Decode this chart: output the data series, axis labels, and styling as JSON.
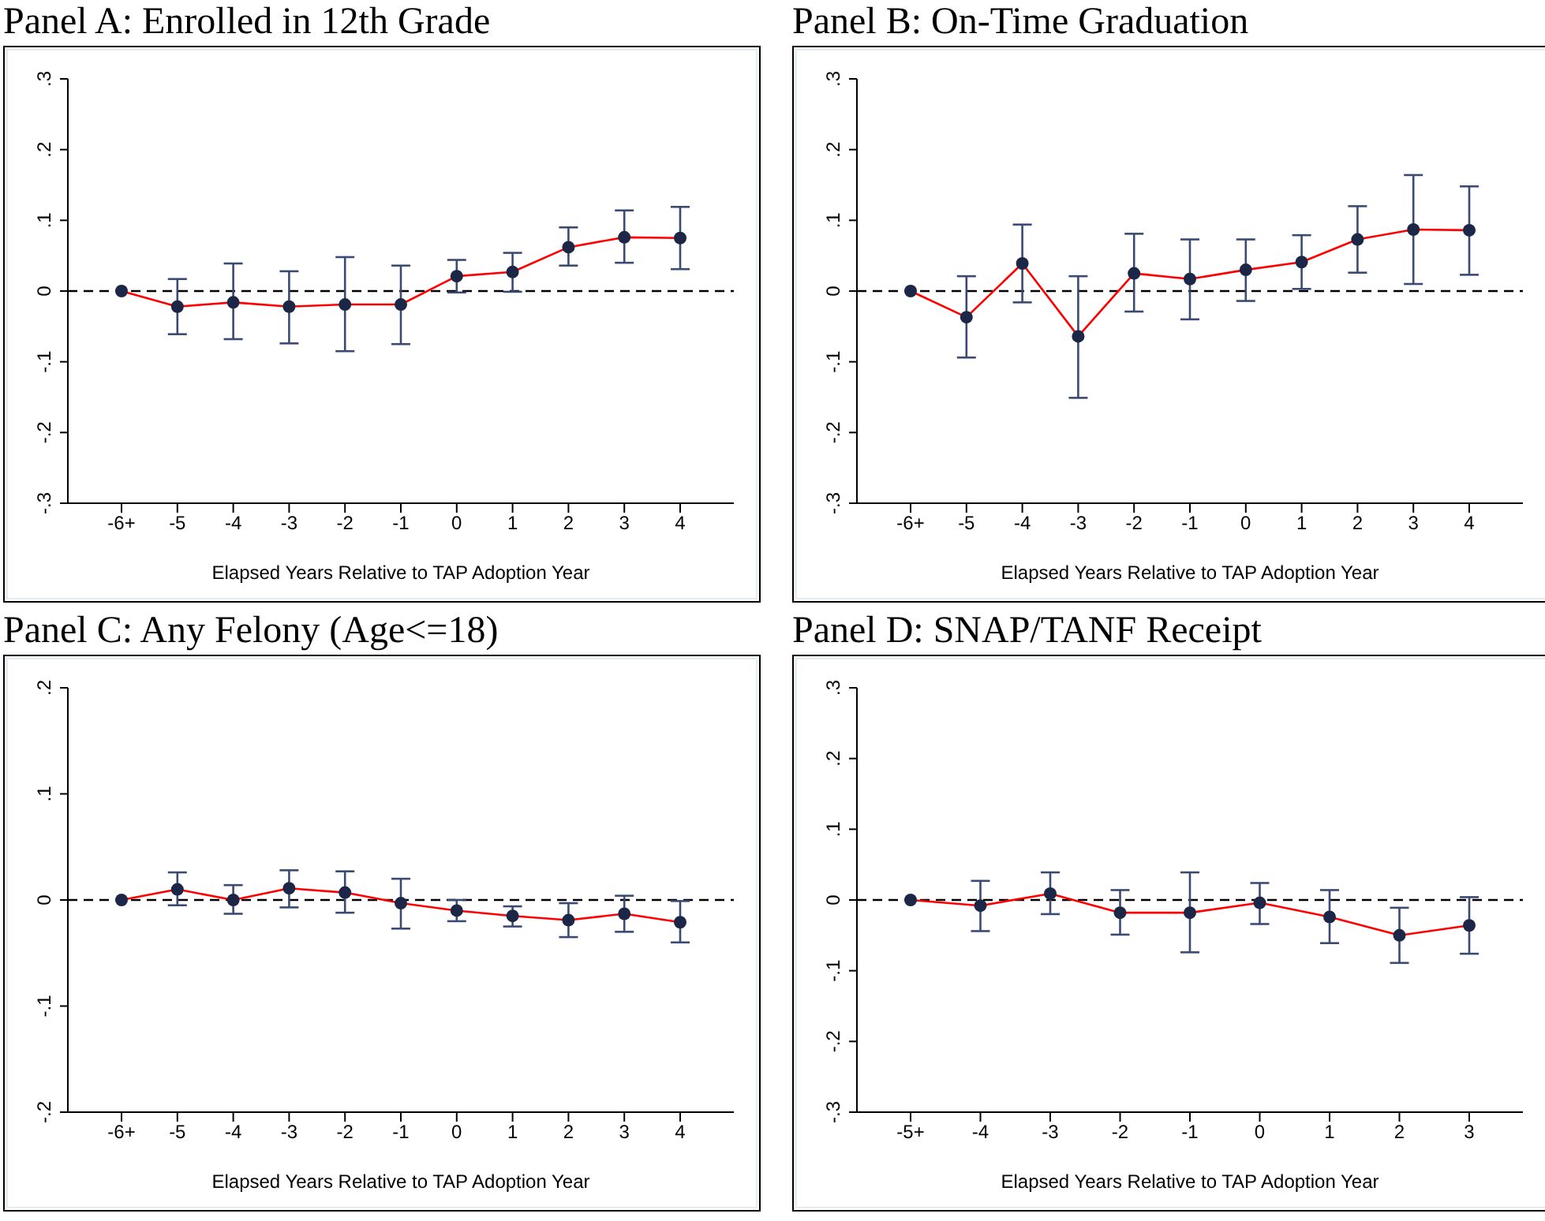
{
  "chart_data": [
    {
      "type": "line",
      "title": "Panel A: Enrolled in 12th Grade",
      "xlabel": "Elapsed Years Relative to TAP Adoption Year",
      "categories": [
        "-6+",
        "-5",
        "-4",
        "-3",
        "-2",
        "-1",
        "0",
        "1",
        "2",
        "3",
        "4"
      ],
      "series": [
        {
          "color": "#ff0000",
          "values": [
            0,
            -0.022,
            -0.016,
            -0.022,
            -0.019,
            -0.019,
            0.021,
            0.027,
            0.062,
            0.076,
            0.075
          ],
          "errors": [
            null,
            [
              -0.061,
              0.017
            ],
            [
              -0.068,
              0.039
            ],
            [
              -0.074,
              0.028
            ],
            [
              -0.085,
              0.048
            ],
            [
              -0.075,
              0.036
            ],
            [
              -0.002,
              0.044
            ],
            [
              -0.001,
              0.054
            ],
            [
              0.036,
              0.09
            ],
            [
              0.04,
              0.114
            ],
            [
              0.031,
              0.119
            ]
          ]
        }
      ],
      "ylim": [
        -0.3,
        0.3
      ],
      "yticks": [
        {
          "value": -0.3,
          "label": "-.3"
        },
        {
          "value": -0.2,
          "label": "-.2"
        },
        {
          "value": -0.1,
          "label": "-.1"
        },
        {
          "value": 0,
          "label": "0"
        },
        {
          "value": 0.1,
          "label": ".1"
        },
        {
          "value": 0.2,
          "label": ".2"
        },
        {
          "value": 0.3,
          "label": ".3"
        }
      ],
      "ref_lines": [
        {
          "axis": "y",
          "value": 0,
          "color": "#000000",
          "line_style": "dashed"
        }
      ],
      "marker": "circle",
      "line_style": "solid",
      "grid": false,
      "legend": false
    },
    {
      "type": "line",
      "title": "Panel B: On-Time Graduation",
      "xlabel": "Elapsed Years Relative to TAP Adoption Year",
      "categories": [
        "-6+",
        "-5",
        "-4",
        "-3",
        "-2",
        "-1",
        "0",
        "1",
        "2",
        "3",
        "4"
      ],
      "series": [
        {
          "color": "#ff0000",
          "values": [
            0,
            -0.037,
            0.039,
            -0.064,
            0.025,
            0.017,
            0.03,
            0.041,
            0.073,
            0.087,
            0.086
          ],
          "errors": [
            null,
            [
              -0.094,
              0.021
            ],
            [
              -0.016,
              0.094
            ],
            [
              -0.151,
              0.021
            ],
            [
              -0.029,
              0.081
            ],
            [
              -0.04,
              0.073
            ],
            [
              -0.014,
              0.073
            ],
            [
              0.003,
              0.079
            ],
            [
              0.026,
              0.12
            ],
            [
              0.01,
              0.164
            ],
            [
              0.023,
              0.148
            ]
          ]
        }
      ],
      "ylim": [
        -0.3,
        0.3
      ],
      "yticks": [
        {
          "value": -0.3,
          "label": "-.3"
        },
        {
          "value": -0.2,
          "label": "-.2"
        },
        {
          "value": -0.1,
          "label": "-.1"
        },
        {
          "value": 0,
          "label": "0"
        },
        {
          "value": 0.1,
          "label": ".1"
        },
        {
          "value": 0.2,
          "label": ".2"
        },
        {
          "value": 0.3,
          "label": ".3"
        }
      ],
      "ref_lines": [
        {
          "axis": "y",
          "value": 0,
          "color": "#000000",
          "line_style": "dashed"
        }
      ],
      "marker": "circle",
      "line_style": "solid",
      "grid": false,
      "legend": false
    },
    {
      "type": "line",
      "title": "Panel C: Any Felony (Age<=18)",
      "xlabel": "Elapsed Years Relative to TAP Adoption Year",
      "categories": [
        "-6+",
        "-5",
        "-4",
        "-3",
        "-2",
        "-1",
        "0",
        "1",
        "2",
        "3",
        "4"
      ],
      "series": [
        {
          "color": "#ff0000",
          "values": [
            0,
            0.01,
            0,
            0.011,
            0.007,
            -0.003,
            -0.01,
            -0.015,
            -0.019,
            -0.013,
            -0.021
          ],
          "errors": [
            null,
            [
              -0.005,
              0.026
            ],
            [
              -0.013,
              0.014
            ],
            [
              -0.007,
              0.028
            ],
            [
              -0.012,
              0.027
            ],
            [
              -0.027,
              0.02
            ],
            [
              -0.02,
              0.0
            ],
            [
              -0.025,
              -0.006
            ],
            [
              -0.035,
              -0.003
            ],
            [
              -0.03,
              0.004
            ],
            [
              -0.04,
              -0.001
            ]
          ]
        }
      ],
      "ylim": [
        -0.2,
        0.2
      ],
      "yticks": [
        {
          "value": -0.2,
          "label": "-.2"
        },
        {
          "value": -0.1,
          "label": "-.1"
        },
        {
          "value": 0,
          "label": "0"
        },
        {
          "value": 0.1,
          "label": ".1"
        },
        {
          "value": 0.2,
          "label": ".2"
        }
      ],
      "ref_lines": [
        {
          "axis": "y",
          "value": 0,
          "color": "#000000",
          "line_style": "dashed"
        }
      ],
      "marker": "circle",
      "line_style": "solid",
      "grid": false,
      "legend": false
    },
    {
      "type": "line",
      "title": "Panel D: SNAP/TANF Receipt",
      "xlabel": "Elapsed Years Relative to TAP Adoption Year",
      "categories": [
        "-5+",
        "-4",
        "-3",
        "-2",
        "-1",
        "0",
        "1",
        "2",
        "3"
      ],
      "series": [
        {
          "color": "#ff0000",
          "values": [
            0,
            -0.008,
            0.009,
            -0.018,
            -0.018,
            -0.004,
            -0.024,
            -0.05,
            -0.036
          ],
          "errors": [
            null,
            [
              -0.044,
              0.027
            ],
            [
              -0.02,
              0.039
            ],
            [
              -0.049,
              0.014
            ],
            [
              -0.074,
              0.039
            ],
            [
              -0.034,
              0.024
            ],
            [
              -0.061,
              0.014
            ],
            [
              -0.089,
              -0.011
            ],
            [
              -0.076,
              0.004
            ]
          ]
        }
      ],
      "ylim": [
        -0.3,
        0.3
      ],
      "yticks": [
        {
          "value": -0.3,
          "label": "-.3"
        },
        {
          "value": -0.2,
          "label": "-.2"
        },
        {
          "value": -0.1,
          "label": "-.1"
        },
        {
          "value": 0,
          "label": "0"
        },
        {
          "value": 0.1,
          "label": ".1"
        },
        {
          "value": 0.2,
          "label": ".2"
        },
        {
          "value": 0.3,
          "label": ".3"
        }
      ],
      "ref_lines": [
        {
          "axis": "y",
          "value": 0,
          "color": "#000000",
          "line_style": "dashed"
        }
      ],
      "marker": "circle",
      "line_style": "solid",
      "grid": false,
      "legend": false
    }
  ]
}
